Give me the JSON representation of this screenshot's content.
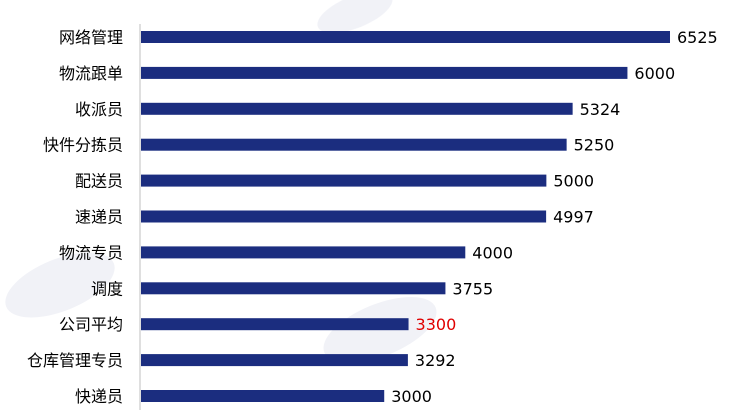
{
  "chart_data": {
    "type": "bar",
    "orientation": "horizontal",
    "categories": [
      "网络管理",
      "物流跟单",
      "收派员",
      "快件分拣员",
      "配送员",
      "速递员",
      "物流专员",
      "调度",
      "公司平均",
      "仓库管理专员",
      "快递员"
    ],
    "values": [
      6525,
      6000,
      5324,
      5250,
      5000,
      4997,
      4000,
      3755,
      3300,
      3292,
      3000
    ],
    "highlight_category": "公司平均",
    "xlim": [
      0,
      6525
    ],
    "grid": false,
    "legend": "none",
    "colors": {
      "bar": "#1b2d7f",
      "label": "#000000",
      "highlight_label": "#e00000",
      "axis": "#bfbfbf"
    }
  }
}
